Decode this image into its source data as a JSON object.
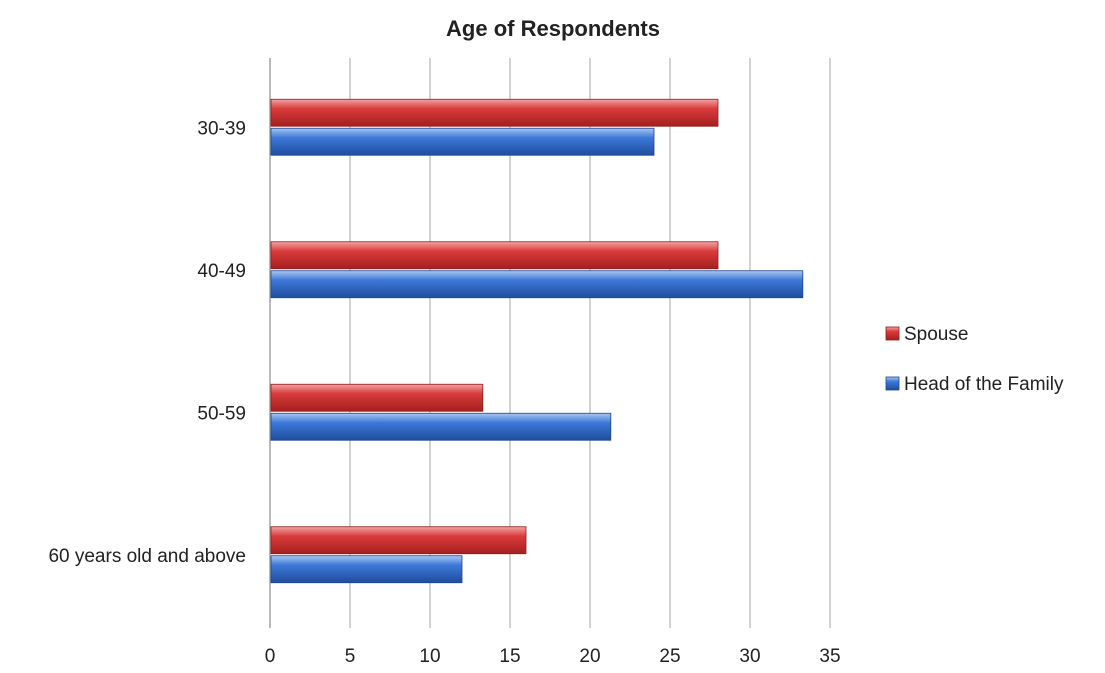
{
  "chart_data": {
    "type": "bar",
    "orientation": "horizontal",
    "title": "Age of Respondents",
    "xlabel": "",
    "ylabel": "",
    "categories": [
      "30-39",
      "40-49",
      "50-59",
      "60 years old and above"
    ],
    "series": [
      {
        "name": "Spouse",
        "color": "#d63a3a",
        "values": [
          28,
          28,
          13.3,
          16
        ]
      },
      {
        "name": "Head of the Family",
        "color": "#3b74d4",
        "values": [
          24,
          33.3,
          21.3,
          12
        ]
      }
    ],
    "xlim": [
      0,
      35
    ],
    "xticks": [
      "0",
      "5",
      "10",
      "15",
      "20",
      "25",
      "30",
      "35"
    ],
    "grid": true,
    "legend_position": "right"
  }
}
